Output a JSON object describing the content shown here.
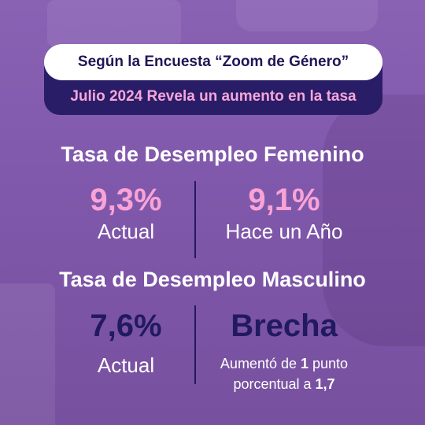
{
  "header": {
    "title": "Según la Encuesta “Zoom de Género”",
    "subtitle": "Julio 2024 Revela un aumento en la tasa"
  },
  "female": {
    "heading": "Tasa de Desempleo Femenino",
    "current_value": "9,3%",
    "current_label": "Actual",
    "year_ago_value": "9,1%",
    "year_ago_label": "Hace un Año"
  },
  "male": {
    "heading": "Tasa de Desempleo Masculino",
    "current_value": "7,6%",
    "current_label": "Actual",
    "gap_title": "Brecha",
    "gap_text_1": "Aumentó de ",
    "gap_from": "1",
    "gap_text_2": " punto",
    "gap_text_3": "porcentual a ",
    "gap_to": "1,7"
  },
  "colors": {
    "background": "#8058ab",
    "navy": "#221a60",
    "pink": "#f9a3d6",
    "white": "#ffffff"
  }
}
